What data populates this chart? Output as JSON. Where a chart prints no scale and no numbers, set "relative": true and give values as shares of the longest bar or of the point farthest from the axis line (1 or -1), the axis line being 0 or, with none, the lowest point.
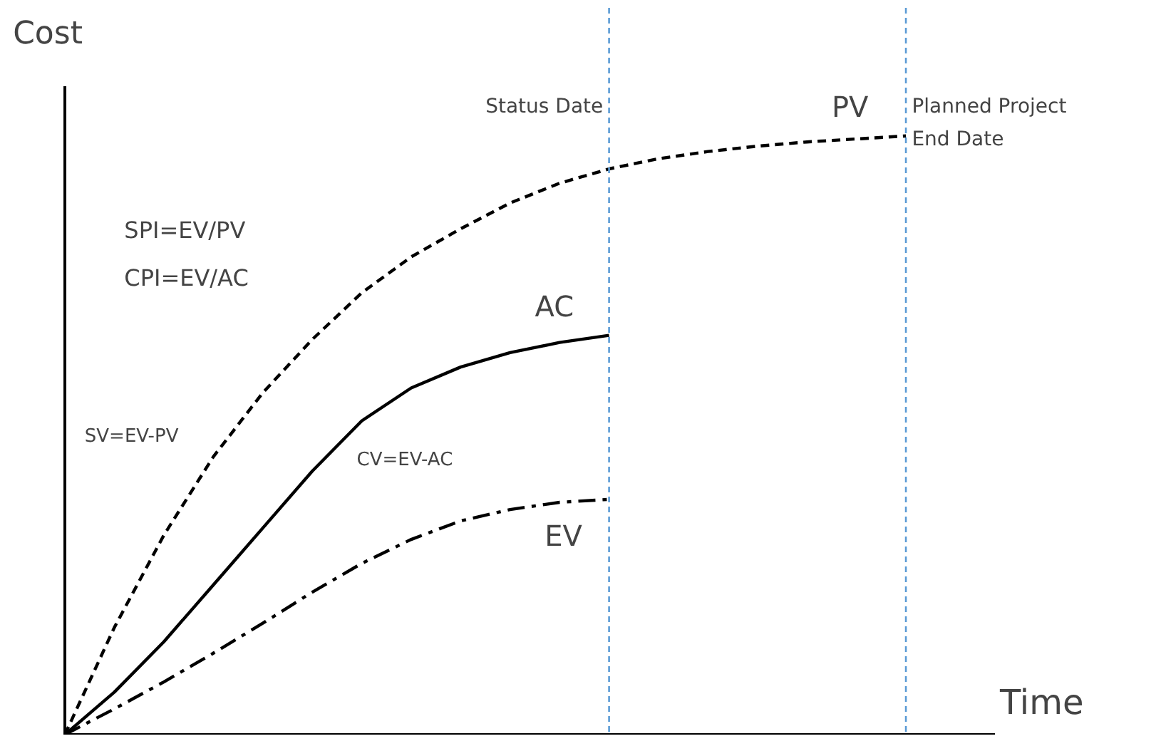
{
  "chart_data": {
    "type": "line",
    "relative": true,
    "xlabel": "Time",
    "ylabel": "Cost",
    "grid": false,
    "categories": [
      null,
      null,
      null,
      null,
      null,
      null,
      null,
      null,
      null,
      null,
      null,
      null,
      null,
      null,
      null,
      null,
      null,
      null
    ],
    "series": [
      {
        "name": "PV",
        "color": "#000000",
        "line_style": "dashed",
        "values": [
          0,
          0.179,
          0.333,
          0.464,
          0.571,
          0.66,
          0.738,
          0.798,
          0.845,
          0.888,
          0.921,
          0.945,
          0.962,
          0.974,
          0.983,
          0.99,
          0.995,
          1
        ]
      },
      {
        "name": "AC",
        "color": "#000000",
        "line_style": "solid",
        "values": [
          0,
          0.071,
          0.155,
          0.25,
          0.345,
          0.44,
          0.524,
          0.579,
          0.614,
          0.638,
          0.655,
          0.667,
          null,
          null,
          null,
          null,
          null,
          null
        ]
      },
      {
        "name": "EV",
        "color": "#000000",
        "line_style": "dashdot",
        "values": [
          0,
          0.043,
          0.088,
          0.136,
          0.186,
          0.238,
          0.286,
          0.326,
          0.357,
          0.376,
          0.388,
          0.393,
          null,
          null,
          null,
          null,
          null,
          null
        ]
      }
    ],
    "annotations": [
      "SPI=EV/PV",
      "CPI=EV/AC",
      "SV=EV-PV",
      "CV=EV-AC",
      "Status Date",
      "Planned Project\nEnd Date"
    ]
  }
}
